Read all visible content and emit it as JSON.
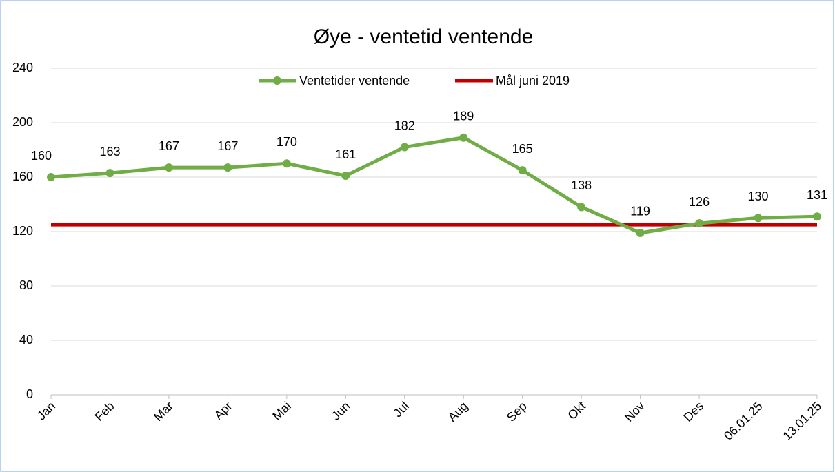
{
  "chart_data": {
    "type": "line",
    "title": "Øye - ventetid ventende",
    "categories": [
      "Jan",
      "Feb",
      "Mar",
      "Apr",
      "Mai",
      "Jun",
      "Jul",
      "Aug",
      "Sep",
      "Okt",
      "Nov",
      "Des",
      "06.01.25",
      "13.01.25"
    ],
    "series": [
      {
        "name": "Ventetider ventende",
        "color": "#70ad47",
        "markers": true,
        "data_labels": true,
        "values": [
          160,
          163,
          167,
          167,
          170,
          161,
          182,
          189,
          165,
          138,
          119,
          126,
          130,
          131
        ]
      },
      {
        "name": "Mål juni 2019",
        "color": "#c00000",
        "markers": false,
        "data_labels": false,
        "values": [
          125,
          125,
          125,
          125,
          125,
          125,
          125,
          125,
          125,
          125,
          125,
          125,
          125,
          125
        ]
      }
    ],
    "ylim": [
      0,
      240
    ],
    "yticks": [
      0,
      40,
      80,
      120,
      160,
      200,
      240
    ],
    "grid": true,
    "legend": "top"
  }
}
